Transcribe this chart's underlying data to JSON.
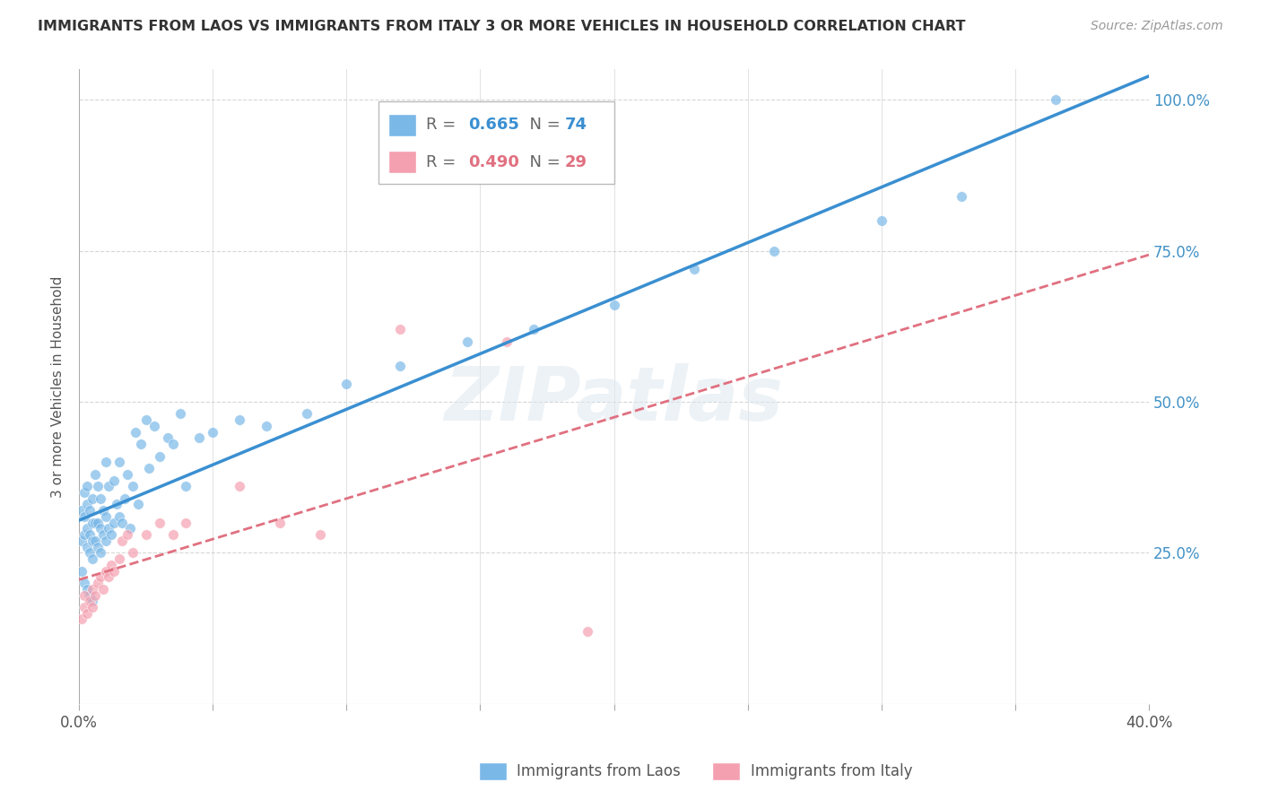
{
  "title": "IMMIGRANTS FROM LAOS VS IMMIGRANTS FROM ITALY 3 OR MORE VEHICLES IN HOUSEHOLD CORRELATION CHART",
  "source": "Source: ZipAtlas.com",
  "ylabel": "3 or more Vehicles in Household",
  "xlim": [
    0.0,
    0.4
  ],
  "ylim": [
    0.0,
    1.05
  ],
  "xtick_labels": [
    "0.0%",
    "",
    "",
    "",
    "",
    "",
    "",
    "",
    "40.0%"
  ],
  "xtick_vals": [
    0.0,
    0.05,
    0.1,
    0.15,
    0.2,
    0.25,
    0.3,
    0.35,
    0.4
  ],
  "ytick_labels": [
    "25.0%",
    "50.0%",
    "75.0%",
    "100.0%"
  ],
  "ytick_vals": [
    0.25,
    0.5,
    0.75,
    1.0
  ],
  "legend1_label": "Immigrants from Laos",
  "legend2_label": "Immigrants from Italy",
  "r1": 0.665,
  "n1": 74,
  "r2": 0.49,
  "n2": 29,
  "color_laos": "#7ab8e8",
  "color_italy": "#f4a0b0",
  "color_laos_line": "#3a8fd1",
  "color_italy_line": "#e07080",
  "laos_x": [
    0.001,
    0.001,
    0.002,
    0.002,
    0.002,
    0.003,
    0.003,
    0.003,
    0.003,
    0.004,
    0.004,
    0.004,
    0.005,
    0.005,
    0.005,
    0.005,
    0.006,
    0.006,
    0.006,
    0.007,
    0.007,
    0.007,
    0.008,
    0.008,
    0.008,
    0.009,
    0.009,
    0.01,
    0.01,
    0.01,
    0.011,
    0.011,
    0.012,
    0.013,
    0.013,
    0.014,
    0.015,
    0.015,
    0.016,
    0.017,
    0.018,
    0.019,
    0.02,
    0.021,
    0.022,
    0.023,
    0.025,
    0.026,
    0.028,
    0.03,
    0.033,
    0.035,
    0.038,
    0.04,
    0.045,
    0.05,
    0.06,
    0.07,
    0.085,
    0.1,
    0.12,
    0.145,
    0.17,
    0.2,
    0.23,
    0.26,
    0.3,
    0.33,
    0.365,
    0.001,
    0.002,
    0.003,
    0.004,
    0.005
  ],
  "laos_y": [
    0.27,
    0.32,
    0.28,
    0.31,
    0.35,
    0.26,
    0.29,
    0.33,
    0.36,
    0.25,
    0.28,
    0.32,
    0.24,
    0.27,
    0.3,
    0.34,
    0.27,
    0.3,
    0.38,
    0.26,
    0.3,
    0.36,
    0.25,
    0.29,
    0.34,
    0.28,
    0.32,
    0.27,
    0.31,
    0.4,
    0.29,
    0.36,
    0.28,
    0.3,
    0.37,
    0.33,
    0.31,
    0.4,
    0.3,
    0.34,
    0.38,
    0.29,
    0.36,
    0.45,
    0.33,
    0.43,
    0.47,
    0.39,
    0.46,
    0.41,
    0.44,
    0.43,
    0.48,
    0.36,
    0.44,
    0.45,
    0.47,
    0.46,
    0.48,
    0.53,
    0.56,
    0.6,
    0.62,
    0.66,
    0.72,
    0.75,
    0.8,
    0.84,
    1.0,
    0.22,
    0.2,
    0.19,
    0.18,
    0.17
  ],
  "italy_x": [
    0.001,
    0.002,
    0.002,
    0.003,
    0.004,
    0.005,
    0.005,
    0.006,
    0.007,
    0.008,
    0.009,
    0.01,
    0.011,
    0.012,
    0.013,
    0.015,
    0.016,
    0.018,
    0.02,
    0.025,
    0.03,
    0.035,
    0.04,
    0.06,
    0.075,
    0.09,
    0.12,
    0.16,
    0.19
  ],
  "italy_y": [
    0.14,
    0.16,
    0.18,
    0.15,
    0.17,
    0.16,
    0.19,
    0.18,
    0.2,
    0.21,
    0.19,
    0.22,
    0.21,
    0.23,
    0.22,
    0.24,
    0.27,
    0.28,
    0.25,
    0.28,
    0.3,
    0.28,
    0.3,
    0.36,
    0.3,
    0.28,
    0.62,
    0.6,
    0.12
  ]
}
